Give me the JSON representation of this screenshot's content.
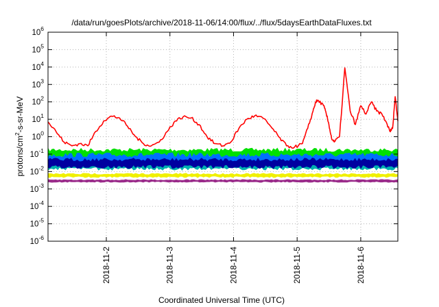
{
  "chart_data": {
    "type": "line",
    "title": "/data/run/goesPlots/archive/2018-11-06/14:00/flux/../flux/5daysEarthDataFluxes.txt",
    "xlabel": "Coordinated Universal Time (UTC)",
    "ylabel_parts": [
      "protons/cm",
      "2",
      "-s-sr-MeV"
    ],
    "y_scale": "log",
    "ylim": [
      1e-06,
      1000000.0
    ],
    "y_ticks": [
      {
        "value": 1000000.0,
        "base": "10",
        "exp": "6"
      },
      {
        "value": 100000.0,
        "base": "10",
        "exp": "5"
      },
      {
        "value": 10000.0,
        "base": "10",
        "exp": "4"
      },
      {
        "value": 1000.0,
        "base": "10",
        "exp": "3"
      },
      {
        "value": 100.0,
        "base": "10",
        "exp": "2"
      },
      {
        "value": 10.0,
        "base": "10",
        "exp": "1"
      },
      {
        "value": 1.0,
        "base": "10",
        "exp": "0"
      },
      {
        "value": 0.1,
        "base": "10",
        "exp": "-1"
      },
      {
        "value": 0.01,
        "base": "10",
        "exp": "-2"
      },
      {
        "value": 0.001,
        "base": "10",
        "exp": "-3"
      },
      {
        "value": 0.0001,
        "base": "10",
        "exp": "-4"
      },
      {
        "value": 1e-05,
        "base": "10",
        "exp": "-5"
      },
      {
        "value": 1e-06,
        "base": "10",
        "exp": "-6"
      }
    ],
    "xlim": [
      "2018-11-01T02:00",
      "2018-11-06T14:00"
    ],
    "x_ticks": [
      {
        "value": "2018-11-02T00:00",
        "label": "2018-11-2"
      },
      {
        "value": "2018-11-03T00:00",
        "label": "2018-11-3"
      },
      {
        "value": "2018-11-04T00:00",
        "label": "2018-11-4"
      },
      {
        "value": "2018-11-05T00:00",
        "label": "2018-11-5"
      },
      {
        "value": "2018-11-06T00:00",
        "label": "2018-11-6"
      }
    ],
    "grid": true,
    "series": [
      {
        "color": "#ff0000",
        "style": "line",
        "x": [
          "2018-11-01T02:00",
          "2018-11-01T05:00",
          "2018-11-01T08:00",
          "2018-11-01T11:00",
          "2018-11-01T14:00",
          "2018-11-01T17:00",
          "2018-11-01T20:00",
          "2018-11-01T23:00",
          "2018-11-02T02:00",
          "2018-11-02T05:00",
          "2018-11-02T08:00",
          "2018-11-02T11:00",
          "2018-11-02T14:00",
          "2018-11-02T17:00",
          "2018-11-02T20:00",
          "2018-11-02T23:00",
          "2018-11-03T02:00",
          "2018-11-03T05:00",
          "2018-11-03T08:00",
          "2018-11-03T11:00",
          "2018-11-03T14:00",
          "2018-11-03T17:00",
          "2018-11-03T20:00",
          "2018-11-03T23:00",
          "2018-11-04T02:00",
          "2018-11-04T05:00",
          "2018-11-04T08:00",
          "2018-11-04T11:00",
          "2018-11-04T14:00",
          "2018-11-04T17:00",
          "2018-11-04T20:00",
          "2018-11-04T23:00",
          "2018-11-05T02:00",
          "2018-11-05T04:00",
          "2018-11-05T06:00",
          "2018-11-05T07:00",
          "2018-11-05T08:00",
          "2018-11-05T10:00",
          "2018-11-05T11:00",
          "2018-11-05T12:00",
          "2018-11-05T13:00",
          "2018-11-05T14:00",
          "2018-11-05T16:00",
          "2018-11-05T18:00",
          "2018-11-05T20:00",
          "2018-11-05T22:00",
          "2018-11-06T00:00",
          "2018-11-06T02:00",
          "2018-11-06T04:00",
          "2018-11-06T06:00",
          "2018-11-06T08:00",
          "2018-11-06T10:00",
          "2018-11-06T11:00",
          "2018-11-06T12:00",
          "2018-11-06T13:00",
          "2018-11-06T14:00"
        ],
        "y": [
          7,
          2,
          0.5,
          0.3,
          0.4,
          0.3,
          2,
          8,
          15,
          12,
          4,
          1,
          0.4,
          0.3,
          0.5,
          2,
          8,
          14,
          12,
          5,
          1,
          0.4,
          0.3,
          0.5,
          3,
          10,
          16,
          12,
          4,
          1,
          0.3,
          0.25,
          0.4,
          3,
          30,
          100,
          120,
          60,
          20,
          5,
          0.8,
          0.5,
          1,
          9000,
          30,
          5,
          60,
          20,
          100,
          30,
          20,
          5,
          2,
          3,
          200,
          8
        ]
      },
      {
        "color": "#00e000",
        "style": "band",
        "ymin": 0.05,
        "ymax": 0.22
      },
      {
        "color": "#0070ff",
        "style": "band",
        "ymin": 0.02,
        "ymax": 0.12
      },
      {
        "color": "#00b0b0",
        "style": "band",
        "ymin": 0.012,
        "ymax": 0.04
      },
      {
        "color": "#0000a0",
        "style": "band",
        "ymin": 0.015,
        "ymax": 0.06
      },
      {
        "color": "#f0f000",
        "style": "band",
        "ymin": 0.0045,
        "ymax": 0.008
      },
      {
        "color": "#9a2b8a",
        "style": "band",
        "ymin": 0.0024,
        "ymax": 0.0035
      }
    ]
  }
}
